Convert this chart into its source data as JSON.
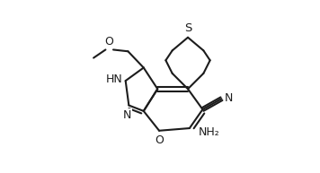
{
  "bg": "#ffffff",
  "lc": "#1c1c1c",
  "lw": 1.5,
  "fs": 9.0,
  "figsize": [
    3.56,
    1.93
  ],
  "dpi": 100,
  "xlim": [
    -0.15,
    1.05
  ],
  "ylim": [
    -0.05,
    1.0
  ]
}
